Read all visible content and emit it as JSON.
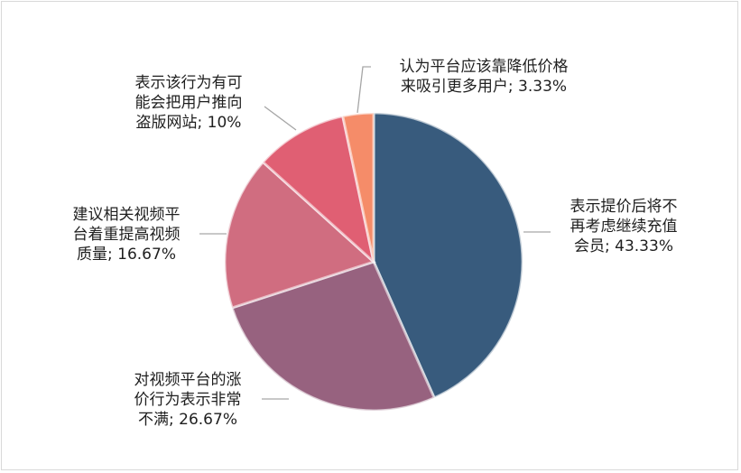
{
  "chart_data": {
    "type": "pie",
    "slices": [
      {
        "label_lines": [
          "表示提价后将不",
          "再考虑继续充值",
          "会员; 43.33%"
        ],
        "value": 43.33,
        "color": "#385b7d"
      },
      {
        "label_lines": [
          "对视频平台的涨",
          "价行为表示非常",
          "不满; 26.67%"
        ],
        "value": 26.67,
        "color": "#97627f"
      },
      {
        "label_lines": [
          "建议相关视频平",
          "台着重提高视频",
          "质量; 16.67%"
        ],
        "value": 16.67,
        "color": "#d06d80"
      },
      {
        "label_lines": [
          "表示该行为有可",
          "能会把用户推向",
          "盗版网站; 10%"
        ],
        "value": 10,
        "color": "#e05f73"
      },
      {
        "label_lines": [
          "认为平台应该靠降低价格",
          "来吸引更多用户; 3.33%"
        ],
        "value": 3.33,
        "color": "#f58c69"
      }
    ],
    "start_angle_deg": 0,
    "direction": "clockwise",
    "legend": "none",
    "data_labels": "outside-with-leader-lines"
  }
}
